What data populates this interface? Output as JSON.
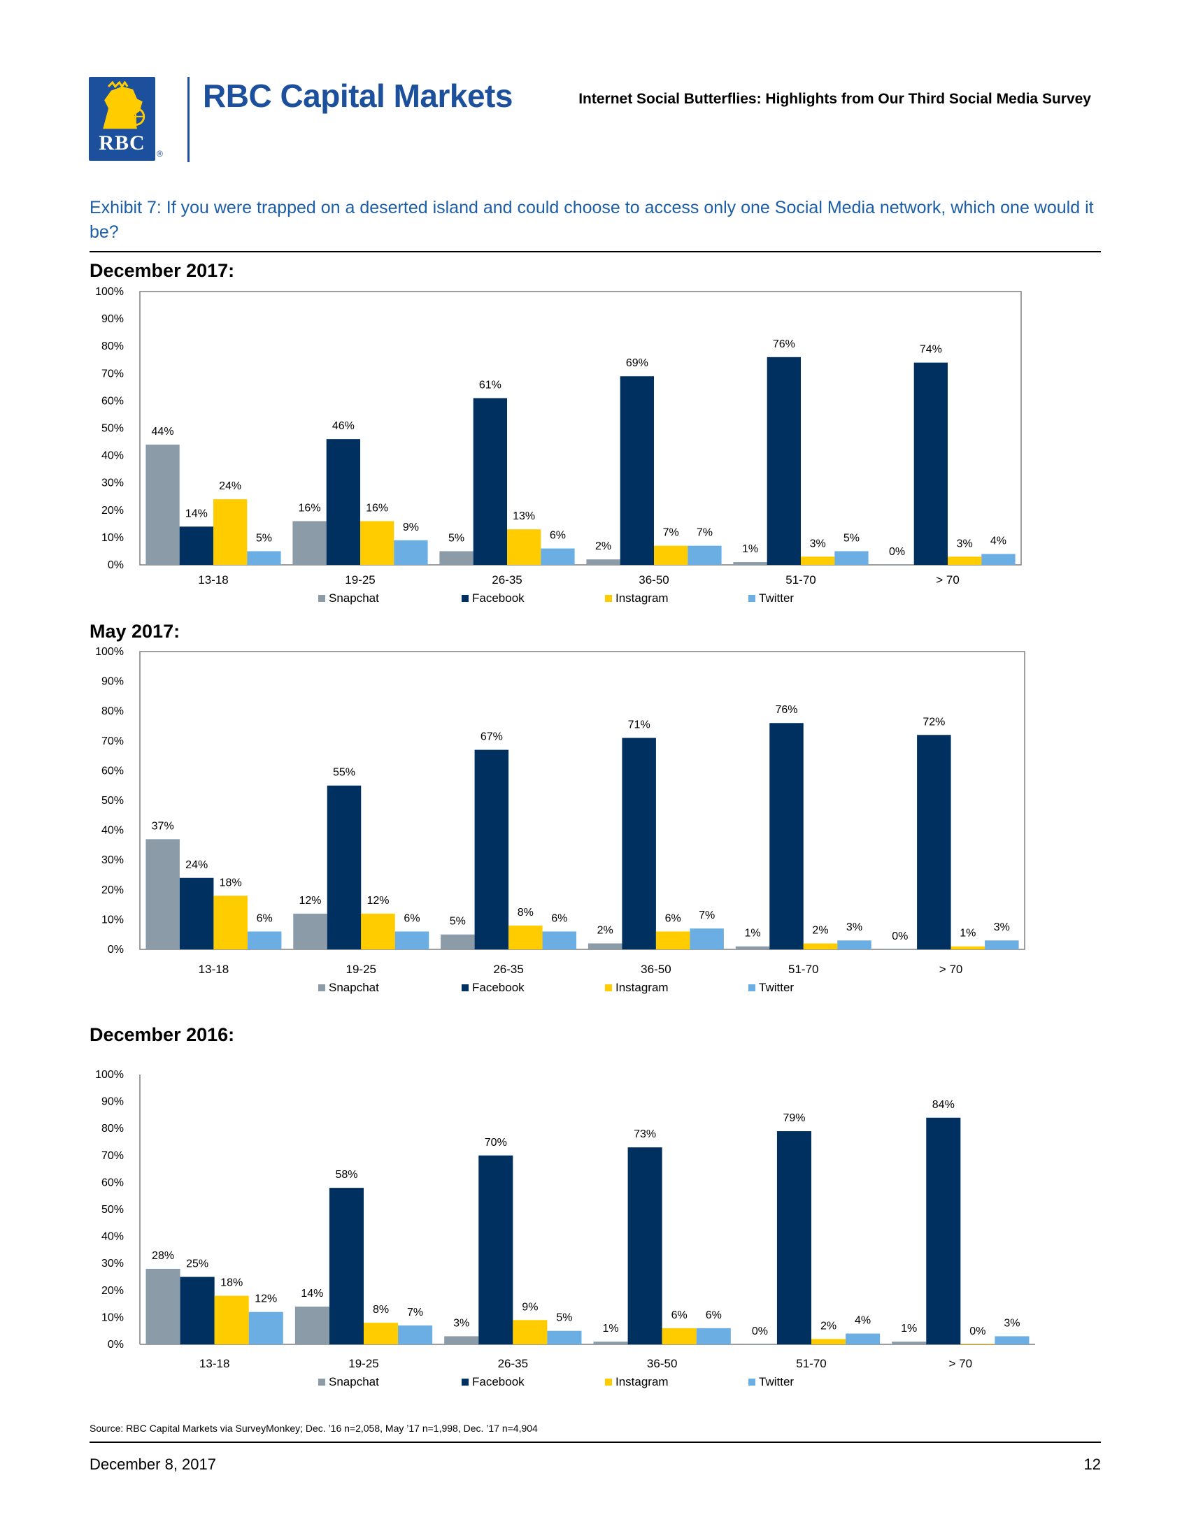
{
  "header": {
    "logo_text": "RBC",
    "brand": "RBC Capital Markets",
    "doc_title": "Internet Social Butterflies: Highlights from Our Third Social Media Survey"
  },
  "exhibit_title": "Exhibit 7: If you were trapped on a deserted island and could choose to access only one Social Media network, which one would it be?",
  "colors": {
    "Snapchat": "#8b9ba8",
    "Facebook": "#00305f",
    "Instagram": "#ffcc00",
    "Twitter": "#6aaee3",
    "accent": "#1c4f9c"
  },
  "chart_data": [
    {
      "type": "bar",
      "title": "December 2017:",
      "categories": [
        "13-18",
        "19-25",
        "26-35",
        "36-50",
        "51-70",
        "> 70"
      ],
      "yticks": [
        "0%",
        "10%",
        "20%",
        "30%",
        "40%",
        "50%",
        "60%",
        "70%",
        "80%",
        "90%",
        "100%"
      ],
      "ylim": [
        0,
        100
      ],
      "legend": "bottom",
      "series": [
        {
          "name": "Snapchat",
          "values": [
            44,
            16,
            5,
            2,
            1,
            0
          ]
        },
        {
          "name": "Facebook",
          "values": [
            14,
            46,
            61,
            69,
            76,
            74
          ]
        },
        {
          "name": "Instagram",
          "values": [
            24,
            16,
            13,
            7,
            3,
            3
          ]
        },
        {
          "name": "Twitter",
          "values": [
            5,
            9,
            6,
            7,
            5,
            4
          ]
        }
      ]
    },
    {
      "type": "bar",
      "title": "May 2017:",
      "categories": [
        "13-18",
        "19-25",
        "26-35",
        "36-50",
        "51-70",
        "> 70"
      ],
      "yticks": [
        "0%",
        "10%",
        "20%",
        "30%",
        "40%",
        "50%",
        "60%",
        "70%",
        "80%",
        "90%",
        "100%"
      ],
      "ylim": [
        0,
        100
      ],
      "legend": "bottom",
      "series": [
        {
          "name": "Snapchat",
          "values": [
            37,
            12,
            5,
            2,
            1,
            0
          ]
        },
        {
          "name": "Facebook",
          "values": [
            24,
            55,
            67,
            71,
            76,
            72
          ]
        },
        {
          "name": "Instagram",
          "values": [
            18,
            12,
            8,
            6,
            2,
            1
          ]
        },
        {
          "name": "Twitter",
          "values": [
            6,
            6,
            6,
            7,
            3,
            3
          ]
        }
      ]
    },
    {
      "type": "bar",
      "title": "December 2016:",
      "categories": [
        "13-18",
        "19-25",
        "26-35",
        "36-50",
        "51-70",
        "> 70"
      ],
      "yticks": [
        "0%",
        "10%",
        "20%",
        "30%",
        "40%",
        "50%",
        "60%",
        "70%",
        "80%",
        "90%",
        "100%"
      ],
      "ylim": [
        0,
        100
      ],
      "legend": "bottom",
      "series": [
        {
          "name": "Snapchat",
          "values": [
            28,
            14,
            3,
            1,
            0,
            1
          ]
        },
        {
          "name": "Facebook",
          "values": [
            25,
            58,
            70,
            73,
            79,
            84
          ]
        },
        {
          "name": "Instagram",
          "values": [
            18,
            8,
            9,
            6,
            2,
            0
          ]
        },
        {
          "name": "Twitter",
          "values": [
            12,
            7,
            5,
            6,
            4,
            3
          ]
        }
      ]
    }
  ],
  "source": "Source: RBC Capital Markets via SurveyMonkey; Dec. ’16 n=2,058, May ’17 n=1,998, Dec. ’17 n=4,904",
  "footer": {
    "date": "December 8, 2017",
    "page": "12"
  }
}
